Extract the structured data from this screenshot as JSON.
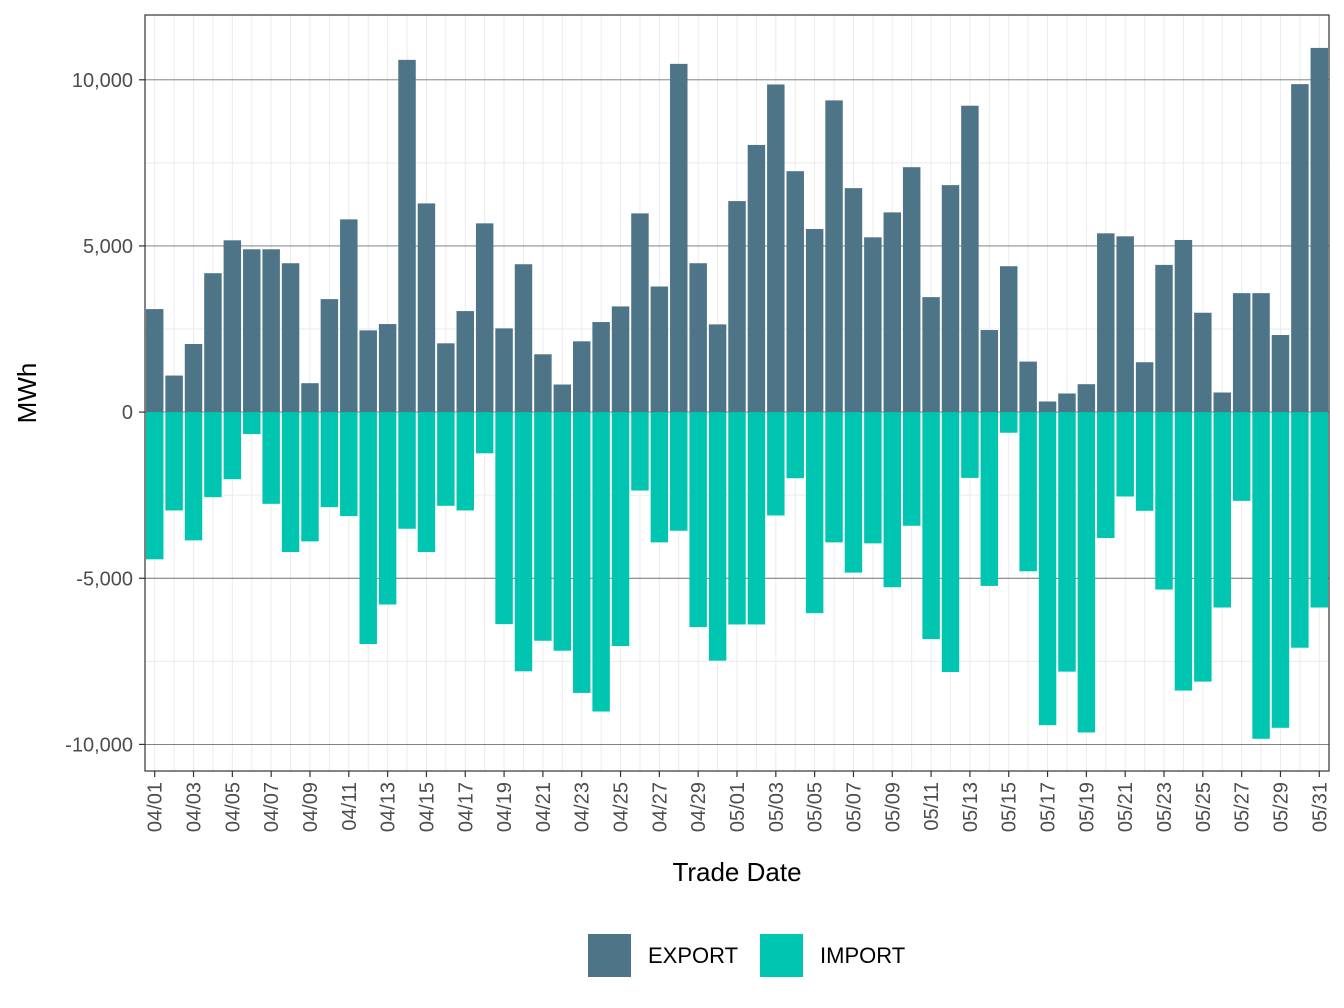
{
  "chart_data": {
    "type": "bar",
    "xlabel": "Trade Date",
    "ylabel": "MWh",
    "ylim": [
      -10800,
      11950
    ],
    "yticks": [
      -10000,
      -5000,
      0,
      5000,
      10000
    ],
    "ytick_labels": [
      "-10,000",
      "-5,000",
      "0",
      "5,000",
      "10,000"
    ],
    "grid": true,
    "legend_position": "bottom",
    "colors": {
      "EXPORT": "#4e7487",
      "IMPORT": "#00c5b0"
    },
    "categories": [
      "04/01",
      "04/02",
      "04/03",
      "04/04",
      "04/05",
      "04/06",
      "04/07",
      "04/08",
      "04/09",
      "04/10",
      "04/11",
      "04/12",
      "04/13",
      "04/14",
      "04/15",
      "04/16",
      "04/17",
      "04/18",
      "04/19",
      "04/20",
      "04/21",
      "04/22",
      "04/23",
      "04/24",
      "04/25",
      "04/26",
      "04/27",
      "04/28",
      "04/29",
      "04/30",
      "05/01",
      "05/02",
      "05/03",
      "05/04",
      "05/05",
      "05/06",
      "05/07",
      "05/08",
      "05/09",
      "05/10",
      "05/11",
      "05/12",
      "05/13",
      "05/14",
      "05/15",
      "05/16",
      "05/17",
      "05/18",
      "05/19",
      "05/20",
      "05/21",
      "05/22",
      "05/23",
      "05/24",
      "05/25",
      "05/26",
      "05/27",
      "05/28",
      "05/29",
      "05/30",
      "05/31"
    ],
    "tick_labels": [
      "04/01",
      "04/03",
      "04/05",
      "04/07",
      "04/09",
      "04/11",
      "04/13",
      "04/15",
      "04/17",
      "04/19",
      "04/21",
      "04/23",
      "04/25",
      "04/27",
      "04/29",
      "05/01",
      "05/03",
      "05/05",
      "05/07",
      "05/09",
      "05/11",
      "05/13",
      "05/15",
      "05/17",
      "05/19",
      "05/21",
      "05/23",
      "05/25",
      "05/27",
      "05/29",
      "05/31"
    ],
    "series": [
      {
        "name": "EXPORT",
        "values": [
          3100,
          1100,
          2050,
          4180,
          5170,
          4900,
          4900,
          4480,
          870,
          3400,
          5800,
          2460,
          2650,
          10600,
          6280,
          2070,
          3040,
          5680,
          2520,
          4450,
          1740,
          830,
          2130,
          2710,
          3180,
          5980,
          3780,
          10480,
          4480,
          2640,
          6350,
          8040,
          9860,
          7250,
          5510,
          9380,
          6740,
          5260,
          6010,
          7370,
          3460,
          6830,
          9220,
          2470,
          4390,
          1520,
          320,
          560,
          840,
          5380,
          5290,
          1500,
          4430,
          5180,
          2990,
          590,
          3580,
          3580,
          2320,
          9870,
          10960
        ]
      },
      {
        "name": "IMPORT",
        "values": [
          -4430,
          -2960,
          -3860,
          -2560,
          -2020,
          -660,
          -2760,
          -4210,
          -3890,
          -2860,
          -3130,
          -6980,
          -5790,
          -3510,
          -4210,
          -2820,
          -2960,
          -1240,
          -6380,
          -7800,
          -6880,
          -7180,
          -8450,
          -9010,
          -7040,
          -2360,
          -3920,
          -3570,
          -6470,
          -7480,
          -6390,
          -6390,
          -3110,
          -1990,
          -6050,
          -3920,
          -4830,
          -3950,
          -5270,
          -3420,
          -6830,
          -7820,
          -1980,
          -5230,
          -620,
          -4790,
          -9420,
          -7810,
          -9640,
          -3790,
          -2540,
          -2970,
          -5340,
          -8380,
          -8110,
          -5880,
          -2670,
          -9830,
          -9500,
          -7090,
          -5880
        ]
      }
    ]
  }
}
